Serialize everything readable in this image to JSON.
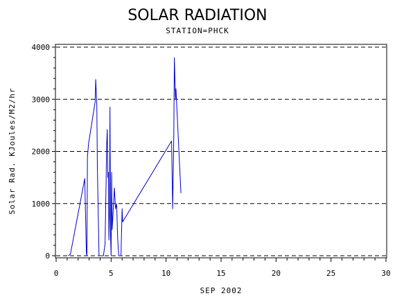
{
  "chart_data": {
    "type": "line",
    "title": "SOLAR RADIATION",
    "subtitle": "STATION=PHCK",
    "xlabel": "SEP 2002",
    "ylabel": "Solar Rad. KJoules/M2/hr",
    "xlim": [
      0,
      30
    ],
    "ylim": [
      0,
      4000
    ],
    "x_ticks": [
      0,
      5,
      10,
      15,
      20,
      25,
      30
    ],
    "x_tick_labels": [
      "0",
      "5",
      "10",
      "15",
      "20",
      "25",
      "30"
    ],
    "y_ticks": [
      0,
      1000,
      2000,
      3000,
      4000
    ],
    "y_tick_labels": [
      "0",
      "1000",
      "2000",
      "3000",
      "4000"
    ],
    "grid": "horizontal-dashed",
    "line_color": "#0000cc",
    "series": [
      {
        "values_xy": [
          [
            1.1,
            0
          ],
          [
            1.3,
            30
          ],
          [
            2.6,
            1480
          ],
          [
            2.75,
            60
          ],
          [
            2.8,
            0
          ],
          [
            2.85,
            1900
          ],
          [
            2.95,
            2150
          ],
          [
            3.55,
            2950
          ],
          [
            3.6,
            3380
          ],
          [
            3.7,
            2900
          ],
          [
            3.75,
            1700
          ],
          [
            3.9,
            0
          ],
          [
            4.1,
            0
          ],
          [
            4.3,
            0
          ],
          [
            4.45,
            220
          ],
          [
            4.55,
            1500
          ],
          [
            4.6,
            2150
          ],
          [
            4.65,
            2420
          ],
          [
            4.7,
            1500
          ],
          [
            4.75,
            1600
          ],
          [
            4.8,
            300
          ],
          [
            4.85,
            800
          ],
          [
            4.9,
            2850
          ],
          [
            4.95,
            400
          ],
          [
            5.0,
            0
          ],
          [
            5.05,
            1600
          ],
          [
            5.1,
            500
          ],
          [
            5.3,
            1300
          ],
          [
            5.4,
            900
          ],
          [
            5.5,
            1000
          ],
          [
            5.6,
            300
          ],
          [
            5.7,
            0
          ],
          [
            5.8,
            0
          ],
          [
            5.9,
            0
          ],
          [
            6.0,
            900
          ],
          [
            6.05,
            650
          ],
          [
            10.5,
            2200
          ],
          [
            10.6,
            900
          ],
          [
            10.7,
            2300
          ],
          [
            10.75,
            3800
          ],
          [
            10.85,
            3000
          ],
          [
            10.9,
            3200
          ],
          [
            11.35,
            1200
          ]
        ]
      }
    ]
  }
}
